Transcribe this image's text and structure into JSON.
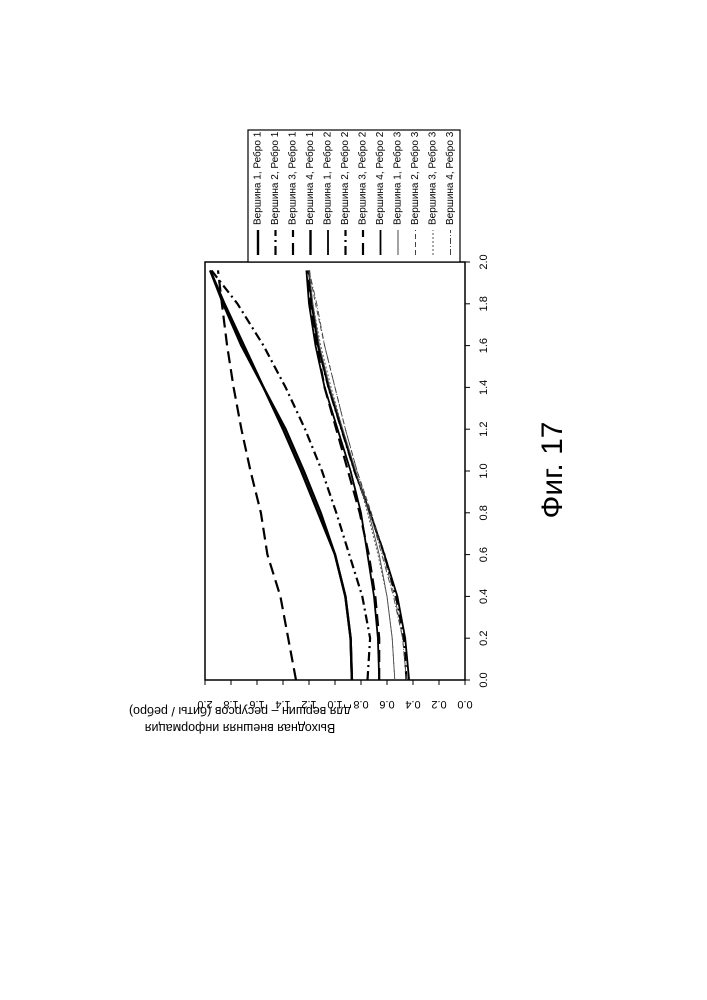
{
  "chart_data": {
    "type": "line",
    "title": "",
    "caption": "Фиг. 17",
    "xlabel": "",
    "ylabel_lines": [
      "Выходная внешняя информация",
      "для вершин – ресурсов (биты / ребро)"
    ],
    "xlim": [
      0.0,
      2.0
    ],
    "ylim": [
      0.0,
      2.0
    ],
    "xticks": [
      "0.0",
      "0.2",
      "0.4",
      "0.6",
      "0.8",
      "1.0",
      "1.2",
      "1.4",
      "1.6",
      "1.8",
      "2.0"
    ],
    "yticks": [
      "0.0",
      "0.2",
      "0.4",
      "0.6",
      "0.8",
      "1.0",
      "1.2",
      "1.4",
      "1.6",
      "1.8",
      "2.0"
    ],
    "grid": false,
    "legend_position": "right",
    "series": [
      {
        "name": "Вершина 1, Ребро 1",
        "style": "solid-bold",
        "x": [
          0.0,
          0.2,
          0.4,
          0.6,
          0.8,
          1.0,
          1.2,
          1.4,
          1.6,
          1.8,
          1.96
        ],
        "y": [
          0.87,
          0.88,
          0.92,
          1.0,
          1.13,
          1.26,
          1.4,
          1.55,
          1.7,
          1.85,
          1.96
        ]
      },
      {
        "name": "Вершина 2, Ребро 1",
        "style": "dashdot",
        "x": [
          0.0,
          0.2,
          0.4,
          0.6,
          0.8,
          1.0,
          1.2,
          1.4,
          1.6,
          1.8,
          1.96
        ],
        "y": [
          0.75,
          0.73,
          0.79,
          0.89,
          0.99,
          1.1,
          1.23,
          1.38,
          1.55,
          1.75,
          1.95
        ]
      },
      {
        "name": "Вершина 3, Ребро 1",
        "style": "longdash",
        "x": [
          0.0,
          0.2,
          0.4,
          0.6,
          0.8,
          1.0,
          1.2,
          1.4,
          1.6,
          1.8,
          1.96
        ],
        "y": [
          1.3,
          1.36,
          1.42,
          1.52,
          1.57,
          1.65,
          1.72,
          1.78,
          1.83,
          1.87,
          1.9
        ]
      },
      {
        "name": "Вершина 4, Ребро 1",
        "style": "solid-bold",
        "x": [
          0.0,
          0.2,
          0.4,
          0.6,
          0.8,
          1.0,
          1.2,
          1.4,
          1.6,
          1.8,
          1.96
        ],
        "y": [
          0.87,
          0.88,
          0.92,
          1.0,
          1.11,
          1.24,
          1.38,
          1.55,
          1.72,
          1.86,
          1.96
        ]
      },
      {
        "name": "Вершина 1, Ребро 2",
        "style": "solid",
        "x": [
          0.0,
          0.2,
          0.4,
          0.6,
          0.8,
          1.0,
          1.2,
          1.4,
          1.6,
          1.8,
          1.96
        ],
        "y": [
          0.66,
          0.67,
          0.7,
          0.75,
          0.8,
          0.88,
          0.98,
          1.08,
          1.15,
          1.2,
          1.22
        ]
      },
      {
        "name": "Вершина 2, Ребро 2",
        "style": "dashdot",
        "x": [
          0.0,
          0.2,
          0.4,
          0.6,
          0.8,
          1.0,
          1.2,
          1.4,
          1.6,
          1.8,
          1.96
        ],
        "y": [
          0.45,
          0.47,
          0.53,
          0.62,
          0.73,
          0.85,
          0.95,
          1.05,
          1.13,
          1.18,
          1.2
        ]
      },
      {
        "name": "Вершина 3, Ребро 2",
        "style": "longdash",
        "x": [
          0.0,
          0.2,
          0.4,
          0.6,
          0.8,
          1.0,
          1.2,
          1.4,
          1.6,
          1.8,
          1.96
        ],
        "y": [
          0.66,
          0.66,
          0.69,
          0.74,
          0.81,
          0.9,
          0.99,
          1.08,
          1.14,
          1.19,
          1.21
        ]
      },
      {
        "name": "Вершина 4, Ребро 2",
        "style": "solid",
        "x": [
          0.0,
          0.2,
          0.4,
          0.6,
          0.8,
          1.0,
          1.2,
          1.4,
          1.6,
          1.8,
          1.96
        ],
        "y": [
          0.43,
          0.46,
          0.52,
          0.62,
          0.73,
          0.85,
          0.95,
          1.05,
          1.13,
          1.18,
          1.2
        ]
      },
      {
        "name": "Вершина 1, Ребро 3",
        "style": "thin",
        "x": [
          0.0,
          0.2,
          0.4,
          0.6,
          0.8,
          1.0,
          1.2,
          1.4,
          1.6,
          1.8,
          1.96
        ],
        "y": [
          0.54,
          0.56,
          0.6,
          0.66,
          0.74,
          0.84,
          0.94,
          1.04,
          1.12,
          1.17,
          1.2
        ]
      },
      {
        "name": "Вершина 2, Ребро 3",
        "style": "thin-dash",
        "x": [
          0.0,
          0.2,
          0.4,
          0.6,
          0.8,
          1.0,
          1.2,
          1.4,
          1.6,
          1.8,
          1.96
        ],
        "y": [
          0.45,
          0.48,
          0.54,
          0.63,
          0.72,
          0.83,
          0.92,
          1.0,
          1.08,
          1.15,
          1.2
        ]
      },
      {
        "name": "Вершина 3, Ребро 3",
        "style": "thin-dot",
        "x": [
          0.0,
          0.2,
          0.4,
          0.6,
          0.8,
          1.0,
          1.2,
          1.4,
          1.6,
          1.8,
          1.96
        ],
        "y": [
          0.54,
          0.56,
          0.6,
          0.67,
          0.75,
          0.84,
          0.94,
          1.03,
          1.11,
          1.17,
          1.2
        ]
      },
      {
        "name": "Вершина 4, Ребро 3",
        "style": "thin-dashdot",
        "x": [
          0.0,
          0.2,
          0.4,
          0.6,
          0.8,
          1.0,
          1.2,
          1.4,
          1.6,
          1.8,
          1.96
        ],
        "y": [
          0.45,
          0.48,
          0.55,
          0.64,
          0.73,
          0.83,
          0.92,
          1.0,
          1.08,
          1.14,
          1.2
        ]
      }
    ]
  }
}
